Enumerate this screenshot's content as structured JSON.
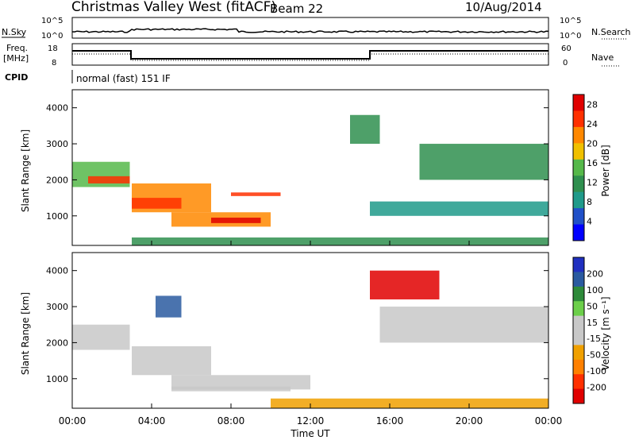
{
  "header": {
    "station": "Christmas Valley West (fitACF)",
    "beam": "Beam 22",
    "date": "10/Aug/2014"
  },
  "panels": {
    "nsky": {
      "left_label": "N.Sky",
      "right_label": "N.Search",
      "left_ticks": [
        "10^5",
        "10^0"
      ],
      "right_ticks": [
        "10^5",
        "10^0"
      ]
    },
    "freq": {
      "left_label_1": "Freq.",
      "left_label_2": "[MHz]",
      "right_label": "Nave",
      "left_ticks": [
        "18",
        "8"
      ],
      "right_ticks": [
        "60",
        "0"
      ]
    },
    "cpid": {
      "label": "CPID",
      "text": "normal (fast) 151 IF"
    }
  },
  "colors": {
    "power": [
      "#0000ff",
      "#2050c8",
      "#1f9a8a",
      "#2f8f4f",
      "#56b84a",
      "#f0c000",
      "#ff8800",
      "#ff3000",
      "#e00000"
    ],
    "velocity": [
      "#2030c0",
      "#2a5aa0",
      "#2e8a3a",
      "#6ccf4a",
      "#c8c8c8",
      "#c8c8c8",
      "#f0a000",
      "#ff8000",
      "#ff3000",
      "#e00000"
    ]
  },
  "chart_data": [
    {
      "type": "heatmap",
      "title": "",
      "ylabel": "Slant Range [km]",
      "xlabel": "Time UT",
      "x_ticks": [
        "00:00",
        "04:00",
        "08:00",
        "12:00",
        "16:00",
        "20:00",
        "00:00"
      ],
      "y_ticks": [
        "1000",
        "2000",
        "3000",
        "4000"
      ],
      "xlim_hours": [
        0,
        24
      ],
      "ylim_km": [
        180,
        4500
      ],
      "colorbar": {
        "label": "Power [dB]",
        "ticks": [
          "4",
          "8",
          "12",
          "16",
          "20",
          "24",
          "28"
        ],
        "range": [
          0,
          30
        ]
      },
      "regions": [
        {
          "name": "patch-early-band",
          "t0": 0.0,
          "t1": 2.9,
          "r0": 1800,
          "r1": 2500,
          "power": 16
        },
        {
          "name": "patch-early-core",
          "t0": 0.8,
          "t1": 2.9,
          "r0": 1900,
          "r1": 2100,
          "power": 24
        },
        {
          "name": "patch-arc-1",
          "t0": 3.0,
          "t1": 7.0,
          "r0": 1100,
          "r1": 1900,
          "power": 20
        },
        {
          "name": "patch-arc-core",
          "t0": 3.0,
          "t1": 5.5,
          "r0": 1200,
          "r1": 1500,
          "power": 26
        },
        {
          "name": "patch-low-band",
          "t0": 5.0,
          "t1": 10.0,
          "r0": 700,
          "r1": 1100,
          "power": 22
        },
        {
          "name": "patch-low-core",
          "t0": 7.0,
          "t1": 9.5,
          "r0": 800,
          "r1": 950,
          "power": 28
        },
        {
          "name": "patch-mid-streak",
          "t0": 8.0,
          "t1": 10.5,
          "r0": 1550,
          "r1": 1650,
          "power": 24
        },
        {
          "name": "patch-right-band",
          "t0": 15.0,
          "t1": 24.0,
          "r0": 1000,
          "r1": 1400,
          "power": 8
        },
        {
          "name": "patch-upper-right",
          "t0": 17.5,
          "t1": 24.0,
          "r0": 2000,
          "r1": 3000,
          "power": 12
        },
        {
          "name": "patch-upper-16",
          "t0": 14.0,
          "t1": 15.5,
          "r0": 3000,
          "r1": 3800,
          "power": 12
        },
        {
          "name": "patch-ground",
          "t0": 3.0,
          "t1": 24.0,
          "r0": 180,
          "r1": 400,
          "power": 10
        }
      ]
    },
    {
      "type": "heatmap",
      "title": "",
      "ylabel": "Slant Range [km]",
      "xlabel": "Time UT",
      "x_ticks": [
        "00:00",
        "04:00",
        "08:00",
        "12:00",
        "16:00",
        "20:00",
        "00:00"
      ],
      "y_ticks": [
        "1000",
        "2000",
        "3000",
        "4000"
      ],
      "xlim_hours": [
        0,
        24
      ],
      "ylim_km": [
        180,
        4500
      ],
      "colorbar": {
        "label": "Velocity [m s⁻¹]",
        "ticks": [
          "200",
          "100",
          "50",
          "15",
          "-15",
          "-50",
          "-100",
          "-200"
        ],
        "range": [
          -250,
          250
        ]
      },
      "regions": [
        {
          "name": "vel-early-gray",
          "t0": 0.0,
          "t1": 2.9,
          "r0": 1800,
          "r1": 2500,
          "velocity": 0
        },
        {
          "name": "vel-arc-gray",
          "t0": 3.0,
          "t1": 7.0,
          "r0": 1100,
          "r1": 1900,
          "velocity": 0
        },
        {
          "name": "vel-low-orange",
          "t0": 5.0,
          "t1": 12.0,
          "r0": 700,
          "r1": 1100,
          "velocity": -40
        },
        {
          "name": "vel-low-green",
          "t0": 5.0,
          "t1": 11.0,
          "r0": 650,
          "r1": 780,
          "velocity": 40
        },
        {
          "name": "vel-red-patch",
          "t0": 15.0,
          "t1": 18.5,
          "r0": 3200,
          "r1": 4000,
          "velocity": -220
        },
        {
          "name": "vel-right-gray",
          "t0": 15.5,
          "t1": 24.0,
          "r0": 2000,
          "r1": 3000,
          "velocity": 0
        },
        {
          "name": "vel-blue-patch",
          "t0": 4.2,
          "t1": 5.5,
          "r0": 2700,
          "r1": 3300,
          "velocity": 150
        },
        {
          "name": "vel-ground-orange",
          "t0": 10.0,
          "t1": 24.0,
          "r0": 180,
          "r1": 450,
          "velocity": -60
        }
      ]
    }
  ]
}
